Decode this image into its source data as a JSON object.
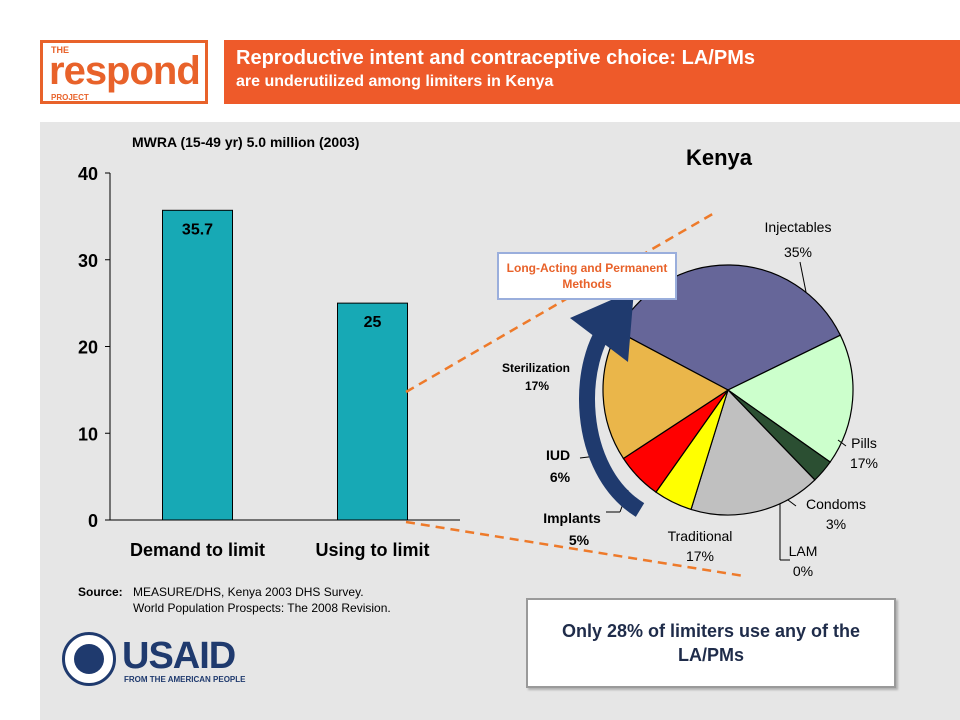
{
  "logo": {
    "the": "THE",
    "word": "respond",
    "project": "PROJECT"
  },
  "header": {
    "title_line1": "Reproductive intent and contraceptive choice: LA/PMs",
    "title_line2": "are underutilized among limiters in Kenya"
  },
  "colors": {
    "orange": "#ee5a2a",
    "bar": "#17a9b5",
    "navy": "#1f3a6e"
  },
  "chart_data": [
    {
      "type": "bar",
      "title": "MWRA (15-49 yr) 5.0 million (2003)",
      "categories": [
        "Demand to limit",
        "Using to limit"
      ],
      "values": [
        35.7,
        25
      ],
      "data_labels": [
        "35.7",
        "25"
      ],
      "ylim": [
        0,
        40
      ],
      "yticks": [
        "0",
        "10",
        "20",
        "30",
        "40"
      ],
      "grid": false,
      "legend": "none"
    },
    {
      "type": "pie",
      "title": "Kenya",
      "slices": [
        {
          "label": "Injectables",
          "pct": 35,
          "pct_label": "35%",
          "color": "#666699"
        },
        {
          "label": "Pills",
          "pct": 17,
          "pct_label": "17%",
          "color": "#ccffcc"
        },
        {
          "label": "Condoms",
          "pct": 3,
          "pct_label": "3%",
          "color": "#2b4f32"
        },
        {
          "label": "LAM",
          "pct": 0,
          "pct_label": "0%",
          "color": "#336666"
        },
        {
          "label": "Traditional",
          "pct": 17,
          "pct_label": "17%",
          "color": "#c0c0c0"
        },
        {
          "label": "Implants",
          "pct": 5,
          "pct_label": "5%",
          "color": "#ffff00"
        },
        {
          "label": "IUD",
          "pct": 6,
          "pct_label": "6%",
          "color": "#ff0000"
        },
        {
          "label": "Sterilization",
          "pct": 17,
          "pct_label": "17%",
          "color": "#eab64a"
        }
      ]
    }
  ],
  "annotations": {
    "lapm_box": "Long-Acting and Permanent Methods"
  },
  "source": {
    "label": "Source:",
    "line1": "MEASURE/DHS, Kenya 2003 DHS Survey.",
    "line2": "World Population Prospects: The 2008 Revision."
  },
  "callout": "Only 28% of limiters use any of the LA/PMs",
  "usaid": {
    "word_blue": "USAID",
    "tagline": "FROM THE AMERICAN PEOPLE"
  }
}
